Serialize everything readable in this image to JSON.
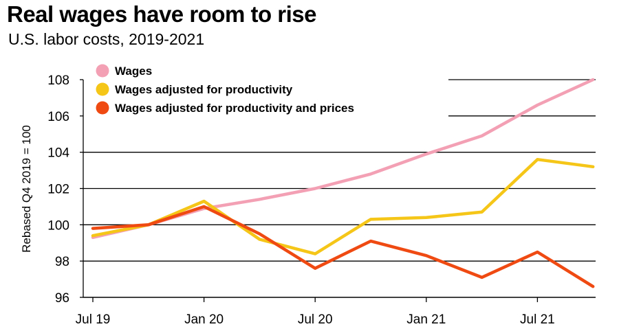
{
  "title": "Real wages have room to rise",
  "subtitle": "U.S. labor costs, 2019-2021",
  "colors": {
    "wages": "#f39fb4",
    "wages_productivity": "#f5c518",
    "wages_productivity_prices": "#f04a13"
  },
  "chart_data": {
    "type": "line",
    "title": "Real wages have room to rise",
    "subtitle": "U.S. labor costs, 2019-2021",
    "xlabel": "",
    "ylabel": "Rebased Q4 2019 = 100",
    "ylim": [
      96,
      108
    ],
    "yticks": [
      96,
      98,
      100,
      102,
      104,
      106,
      108
    ],
    "x": [
      "Q3 2019",
      "Q4 2019",
      "Q1 2020",
      "Q2 2020",
      "Q3 2020",
      "Q4 2020",
      "Q1 2021",
      "Q2 2021",
      "Q3 2021",
      "Q4 2021"
    ],
    "xtick_labels": [
      "Jul 19",
      "Jan 20",
      "Jul 20",
      "Jan 21",
      "Jul 21"
    ],
    "xtick_positions": [
      0,
      2,
      4,
      6,
      8
    ],
    "series": [
      {
        "name": "Wages",
        "key": "wages",
        "values": [
          99.3,
          100.0,
          100.9,
          101.4,
          102.0,
          102.8,
          103.9,
          104.9,
          106.6,
          108.0
        ]
      },
      {
        "name": "Wages adjusted for productivity",
        "key": "wages_productivity",
        "values": [
          99.4,
          100.0,
          101.3,
          99.2,
          98.4,
          100.3,
          100.4,
          100.7,
          103.6,
          103.2
        ]
      },
      {
        "name": "Wages adjusted for productivity and prices",
        "key": "wages_productivity_prices",
        "values": [
          99.8,
          100.0,
          101.0,
          99.5,
          97.6,
          99.1,
          98.3,
          97.1,
          98.5,
          96.6
        ]
      }
    ],
    "legend_position": "top-left",
    "grid": true
  }
}
